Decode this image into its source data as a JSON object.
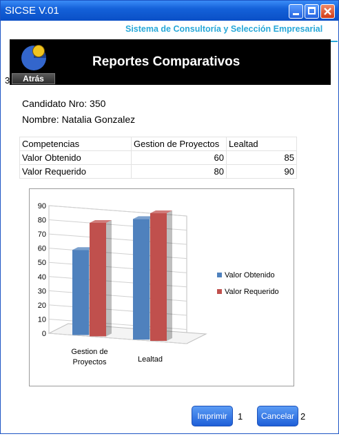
{
  "window": {
    "title": "SICSE V.01"
  },
  "brand": "Sistema de Consultoría y Selección Empresarial",
  "header": {
    "title": "Reportes Comparativos",
    "back_label": "Atrás",
    "back_number": "3"
  },
  "candidate": {
    "number_text": "Candidato Nro: 350",
    "name_text": "Nombre: Natalia Gonzalez"
  },
  "table": {
    "headers": [
      "Competencias",
      "Gestion de Proyectos",
      "Lealtad"
    ],
    "rows": [
      [
        "Valor Obtenido",
        "60",
        "85"
      ],
      [
        "Valor Requerido",
        "80",
        "90"
      ]
    ]
  },
  "chart_data": {
    "type": "bar",
    "categories": [
      "Gestion de Proyectos",
      "Lealtad"
    ],
    "series": [
      {
        "name": "Valor Obtenido",
        "values": [
          60,
          85
        ],
        "color": "#4f81bd"
      },
      {
        "name": "Valor Requerido",
        "values": [
          80,
          90
        ],
        "color": "#c0504d"
      }
    ],
    "ylim": [
      0,
      90
    ],
    "yticks": [
      0,
      10,
      20,
      30,
      40,
      50,
      60,
      70,
      80,
      90
    ],
    "legend": "right",
    "grid": true,
    "style": "3d"
  },
  "footer": {
    "print_label": "Imprimir",
    "print_number": "1",
    "cancel_label": "Cancelar",
    "cancel_number": "2"
  },
  "colors": {
    "titlebar": "#0a4fc6",
    "brand": "#27a8d8",
    "button": "#1e5fd8"
  }
}
